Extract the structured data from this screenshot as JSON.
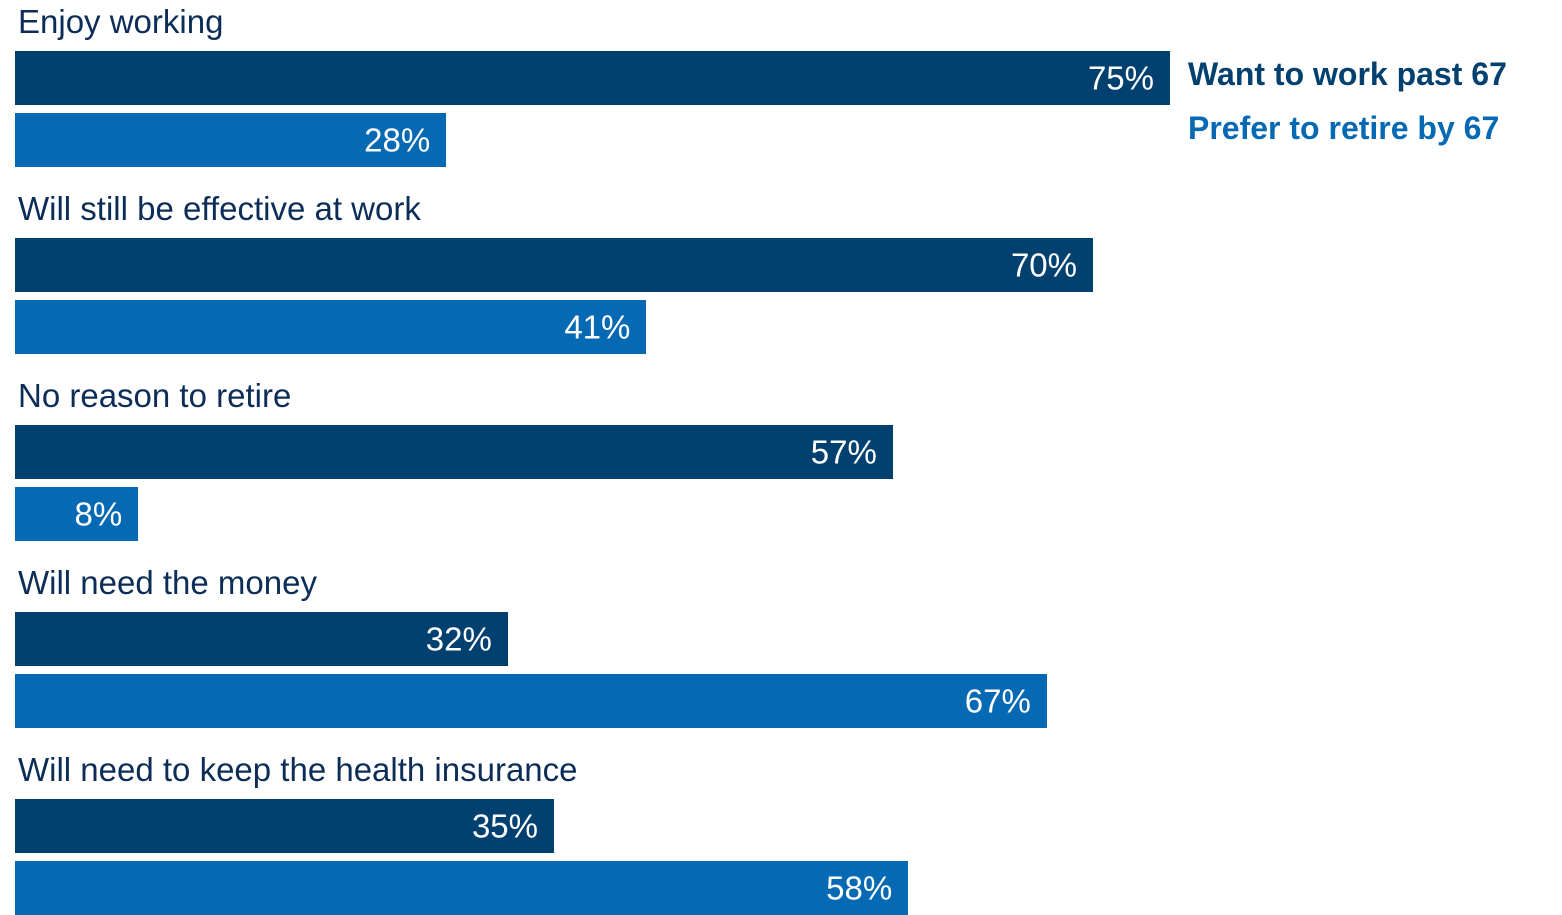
{
  "chart_data": {
    "type": "bar",
    "orientation": "horizontal",
    "categories": [
      "Enjoy working",
      "Will still be effective at work",
      "No reason to retire",
      "Will need the money",
      "Will need to keep the health insurance"
    ],
    "series": [
      {
        "name": "Want to work past 67",
        "color": "#02406f",
        "values": [
          75,
          70,
          57,
          32,
          35
        ]
      },
      {
        "name": "Prefer to retire by 67",
        "color": "#0569b4",
        "values": [
          28,
          41,
          8,
          67,
          58
        ]
      }
    ],
    "value_format": "percent",
    "xlim": [
      0,
      100
    ],
    "legend_position": "top-right",
    "grid": false,
    "title": "",
    "xlabel": "",
    "ylabel": ""
  }
}
